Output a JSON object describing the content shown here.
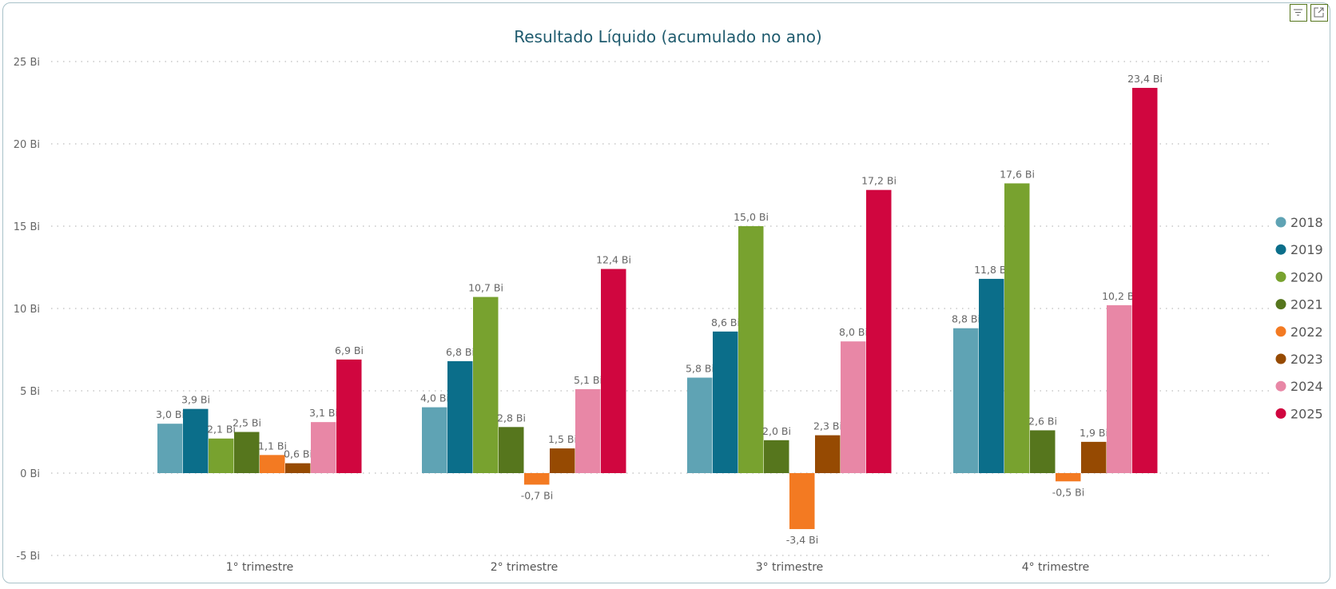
{
  "header": {
    "filter_icon": "filter-icon",
    "focus_icon": "focus-mode-icon"
  },
  "chart_data": {
    "type": "bar",
    "title": "Resultado Líquido (acumulado no ano)",
    "categories": [
      "1° trimestre",
      "2° trimestre",
      "3° trimestre",
      "4° trimestre"
    ],
    "series": [
      {
        "name": "2018",
        "color": "#5fa3b4",
        "values": [
          3.0,
          4.0,
          5.8,
          8.8
        ],
        "labels": [
          "3,0 Bi",
          "4,0 Bi",
          "5,8 Bi",
          "8,8 Bi"
        ]
      },
      {
        "name": "2019",
        "color": "#0b6e8a",
        "values": [
          3.9,
          6.8,
          8.6,
          11.8
        ],
        "labels": [
          "3,9 Bi",
          "6,8 Bi",
          "8,6 Bi",
          "11,8 Bi"
        ]
      },
      {
        "name": "2020",
        "color": "#78a22f",
        "values": [
          2.1,
          10.7,
          15.0,
          17.6
        ],
        "labels": [
          "2,1 Bi",
          "10,7 Bi",
          "15,0 Bi",
          "17,6 Bi"
        ]
      },
      {
        "name": "2021",
        "color": "#56761d",
        "values": [
          2.5,
          2.8,
          2.0,
          2.6
        ],
        "labels": [
          "2,5 Bi",
          "2,8 Bi",
          "2,0 Bi",
          "2,6 Bi"
        ]
      },
      {
        "name": "2022",
        "color": "#f37a22",
        "values": [
          1.1,
          -0.7,
          -3.4,
          -0.5
        ],
        "labels": [
          "1,1 Bi",
          "-0,7 Bi",
          "-3,4 Bi",
          "-0,5 Bi"
        ]
      },
      {
        "name": "2023",
        "color": "#964a02",
        "values": [
          0.6,
          1.5,
          2.3,
          1.9
        ],
        "labels": [
          "0,6 Bi",
          "1,5 Bi",
          "2,3 Bi",
          "1,9 Bi"
        ]
      },
      {
        "name": "2024",
        "color": "#e887a6",
        "values": [
          3.1,
          5.1,
          8.0,
          10.2
        ],
        "labels": [
          "3,1 Bi",
          "5,1 Bi",
          "8,0 Bi",
          "10,2 Bi"
        ]
      },
      {
        "name": "2025",
        "color": "#d0063f",
        "values": [
          6.9,
          12.4,
          17.2,
          23.4
        ],
        "labels": [
          "6,9 Bi",
          "12,4 Bi",
          "17,2 Bi",
          "23,4 Bi"
        ]
      }
    ],
    "yticks": [
      25,
      20,
      15,
      10,
      5,
      0,
      -5
    ],
    "ytick_labels": [
      "25 Bi",
      "20 Bi",
      "15 Bi",
      "10 Bi",
      "5 Bi",
      "0 Bi",
      "-5 Bi"
    ],
    "ylim": [
      -5,
      25
    ],
    "xlabel": "",
    "ylabel": "",
    "grid": true,
    "legend": "right"
  }
}
